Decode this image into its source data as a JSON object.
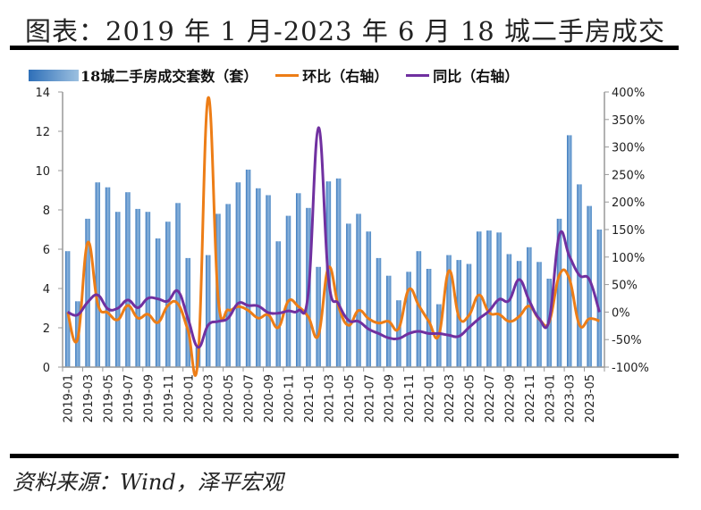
{
  "header": {
    "title": "图表：2019 年 1 月-2023 年 6 月 18 城二手房成交"
  },
  "footer": {
    "source": "资料来源：Wind，泽平宏观"
  },
  "colors": {
    "bar": "#4f8ac6",
    "bar_light": "#9cc0e0",
    "mom_line": "#ed7d16",
    "yoy_line": "#7030a0",
    "axis": "#999999"
  },
  "chart_data": {
    "type": "bar+line",
    "title": "图表：2019 年 1 月-2023 年 6 月 18 城二手房成交",
    "legend": [
      "18城二手房成交套数（套）",
      "环比（右轴）",
      "同比（右轴）"
    ],
    "legend_position": "top",
    "x": [
      "2019-01",
      "2019-02",
      "2019-03",
      "2019-04",
      "2019-05",
      "2019-06",
      "2019-07",
      "2019-08",
      "2019-09",
      "2019-10",
      "2019-11",
      "2019-12",
      "2020-01",
      "2020-02",
      "2020-03",
      "2020-04",
      "2020-05",
      "2020-06",
      "2020-07",
      "2020-08",
      "2020-09",
      "2020-10",
      "2020-11",
      "2020-12",
      "2021-01",
      "2021-02",
      "2021-03",
      "2021-04",
      "2021-05",
      "2021-06",
      "2021-07",
      "2021-08",
      "2021-09",
      "2021-10",
      "2021-11",
      "2021-12",
      "2022-01",
      "2022-02",
      "2022-03",
      "2022-04",
      "2022-05",
      "2022-06",
      "2022-07",
      "2022-08",
      "2022-09",
      "2022-10",
      "2022-11",
      "2022-12",
      "2023-01",
      "2023-02",
      "2023-03",
      "2023-04",
      "2023-05",
      "2023-06"
    ],
    "x_tick_labels": [
      "2019-01",
      "2019-03",
      "2019-05",
      "2019-07",
      "2019-09",
      "2019-11",
      "2020-01",
      "2020-03",
      "2020-05",
      "2020-07",
      "2020-09",
      "2020-11",
      "2021-01",
      "2021-03",
      "2021-05",
      "2021-07",
      "2021-09",
      "2021-11",
      "2022-01",
      "2022-03",
      "2022-05",
      "2022-07",
      "2022-09",
      "2022-11",
      "2023-01",
      "2023-03",
      "2023-05"
    ],
    "series": [
      {
        "name": "18城二手房成交套数（套）",
        "type": "bar",
        "axis": "left",
        "values": [
          5.9,
          3.35,
          7.55,
          9.4,
          9.15,
          7.9,
          8.9,
          8.05,
          7.9,
          6.55,
          7.4,
          8.35,
          5.55,
          1.0,
          5.7,
          7.8,
          8.3,
          9.4,
          10.05,
          9.1,
          8.75,
          6.4,
          7.7,
          8.85,
          8.1,
          5.1,
          9.45,
          9.6,
          7.3,
          7.8,
          6.9,
          5.55,
          4.65,
          3.4,
          4.85,
          5.9,
          5.0,
          3.2,
          5.7,
          5.45,
          5.25,
          6.9,
          6.95,
          6.85,
          5.75,
          5.4,
          6.1,
          5.35,
          4.5,
          7.55,
          11.8,
          9.3,
          8.2,
          7.0
        ]
      },
      {
        "name": "环比（右轴）",
        "type": "line",
        "axis": "right",
        "unit": "%",
        "values": [
          0,
          -49,
          126,
          15,
          -1,
          -14,
          12,
          -11,
          -4,
          -19,
          12,
          15,
          -33,
          -85,
          389,
          26,
          4,
          10,
          3,
          -11,
          -5,
          -28,
          20,
          10,
          -9,
          -42,
          81,
          10,
          -24,
          3,
          -12,
          -20,
          -17,
          -30,
          41,
          12,
          -17,
          -42,
          75,
          -9,
          -6,
          31,
          -1,
          -4,
          -17,
          -8,
          11,
          -13,
          -18,
          67,
          61,
          -23,
          -12,
          -16
        ]
      },
      {
        "name": "同比（右轴）",
        "type": "line",
        "axis": "right",
        "unit": "%",
        "values": [
          0,
          -5,
          18,
          31,
          6,
          7,
          22,
          8,
          25,
          24,
          20,
          38,
          -12,
          -64,
          -24,
          -17,
          -11,
          16,
          12,
          11,
          -1,
          -2,
          2,
          3,
          37,
          335,
          60,
          15,
          -15,
          -17,
          -31,
          -39,
          -47,
          -48,
          -39,
          -35,
          -39,
          -39,
          -42,
          -44,
          -28,
          -12,
          2,
          23,
          21,
          59,
          21,
          -12,
          -14,
          140,
          102,
          67,
          59,
          0
        ]
      }
    ],
    "y_left": {
      "range": [
        0,
        14
      ],
      "ticks": [
        "0",
        "2",
        "4",
        "6",
        "8",
        "10",
        "12",
        "14"
      ]
    },
    "y_right": {
      "range": [
        -100,
        400
      ],
      "ticks": [
        "-100%",
        "-50%",
        "0%",
        "50%",
        "100%",
        "150%",
        "200%",
        "250%",
        "300%",
        "350%",
        "400%"
      ]
    },
    "grid": false
  }
}
